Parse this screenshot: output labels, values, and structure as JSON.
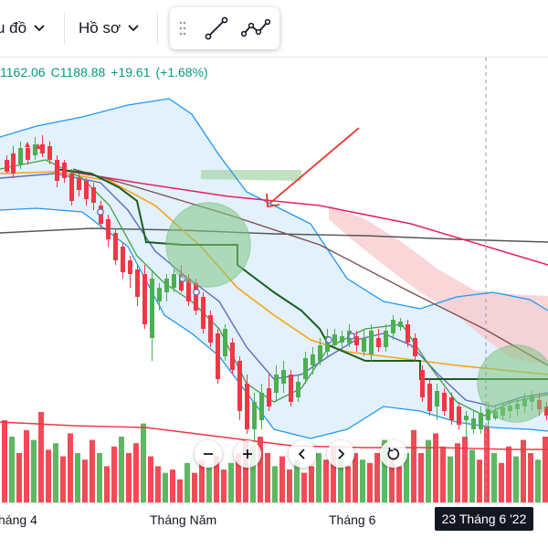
{
  "toolbar": {
    "chart_type_label": "u đồ",
    "profile_label": "Hồ sơ"
  },
  "ohlc": {
    "low": "1162.06",
    "close_prefix": "C",
    "close": "1188.88",
    "change": "+19.61",
    "change_pct": "(+1.68%)"
  },
  "time_axis": {
    "labels": [
      "háng 4",
      "Tháng Năm",
      "Tháng 6"
    ],
    "crosshair_date": "23 Tháng 6 '22"
  },
  "colors": {
    "up": "#4caf50",
    "down": "#f23645",
    "up_text": "#089981",
    "bb_line": "#2196f3",
    "ma_orange": "#f7a21b",
    "ma_pink": "#e91e63",
    "ma_dark": "#555555",
    "tenkan": "#1b5e20",
    "annotation_arrow": "#e5342d",
    "highlight_circle": "#81c784"
  },
  "icons": [
    "chevron-down-icon",
    "drag-handle-icon",
    "trend-line-icon",
    "path-tool-icon",
    "zoom-out-icon",
    "zoom-in-icon",
    "scroll-left-icon",
    "scroll-right-icon",
    "reset-icon"
  ]
}
